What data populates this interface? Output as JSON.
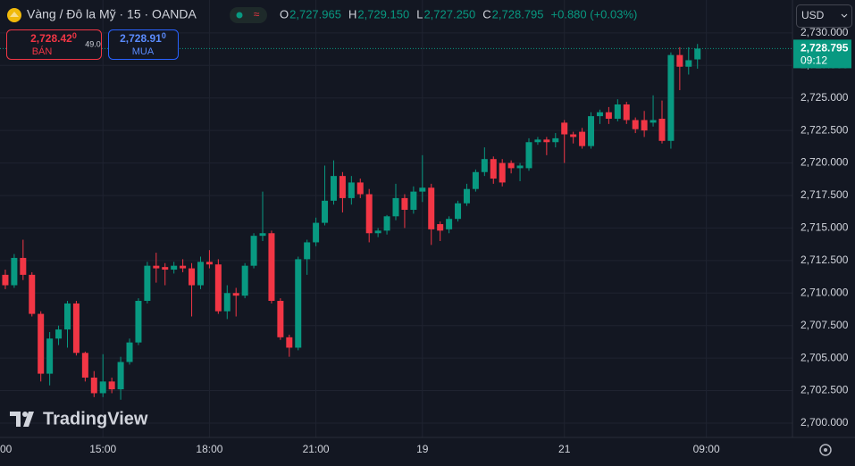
{
  "header": {
    "symbol": "Vàng / Đô la Mỹ · 15 · OANDA",
    "ohlc": [
      {
        "label": "O",
        "value": "2,727.965"
      },
      {
        "label": "H",
        "value": "2,729.150"
      },
      {
        "label": "L",
        "value": "2,727.250"
      },
      {
        "label": "C",
        "value": "2,728.795"
      }
    ],
    "change": "+0.880 (+0.03%)",
    "currency": "USD",
    "sell": {
      "price": "2,728.42",
      "pip": "0",
      "label": "BÁN"
    },
    "spread": "49.0",
    "buy": {
      "price": "2,728.91",
      "pip": "0",
      "label": "MUA"
    },
    "logo": "TradingView"
  },
  "chart_data": {
    "type": "candlestick",
    "up_color": "#089981",
    "down_color": "#f23645",
    "open": [
      2711.4,
      2710.6,
      2712.7,
      2711.4,
      2708.4,
      2703.8,
      2706.5,
      2707.2,
      2709.2,
      2705.4,
      2703.5,
      2702.3,
      2703.2,
      2702.6,
      2704.7,
      2706.2,
      2709.4,
      2712.1,
      2712.0,
      2711.8,
      2712.1,
      2711.9,
      2710.6,
      2712.4,
      2712.2,
      2708.6,
      2710.0,
      2709.8,
      2712.1,
      2714.4,
      2714.6,
      2709.4,
      2706.6,
      2705.8,
      2712.6,
      2713.9,
      2715.4,
      2717.1,
      2719.0,
      2717.3,
      2718.5,
      2717.6,
      2714.6,
      2714.8,
      2715.9,
      2717.3,
      2716.4,
      2717.8,
      2718.1,
      2715.3,
      2714.9,
      2715.7,
      2716.9,
      2718.0,
      2719.3,
      2720.3,
      2720.0,
      2720.0,
      2719.6,
      2719.6,
      2721.6,
      2721.8,
      2721.6,
      2723.1,
      2722.2,
      2722.4,
      2721.3,
      2723.6,
      2723.9,
      2723.4,
      2724.5,
      2723.3,
      2723.3,
      2723.1,
      2723.4,
      2721.7,
      2728.3,
      2727.4,
      2727.965
    ],
    "high": [
      2711.8,
      2713.0,
      2714.1,
      2711.6,
      2708.6,
      2707.0,
      2707.5,
      2709.4,
      2709.4,
      2705.5,
      2704.0,
      2705.3,
      2703.5,
      2705.1,
      2706.5,
      2709.6,
      2712.4,
      2713.1,
      2712.3,
      2712.4,
      2712.6,
      2712.3,
      2712.8,
      2713.3,
      2712.6,
      2710.6,
      2710.4,
      2712.3,
      2714.6,
      2717.8,
      2714.8,
      2709.6,
      2706.8,
      2712.8,
      2714.1,
      2715.8,
      2719.8,
      2720.2,
      2719.3,
      2719.0,
      2718.8,
      2718.0,
      2715.0,
      2716.0,
      2718.4,
      2717.6,
      2718.2,
      2720.6,
      2718.4,
      2715.5,
      2715.9,
      2717.1,
      2718.4,
      2719.5,
      2721.2,
      2720.5,
      2720.3,
      2720.2,
      2720.0,
      2721.9,
      2722.0,
      2722.0,
      2722.3,
      2723.3,
      2722.4,
      2722.7,
      2723.9,
      2724.1,
      2724.3,
      2724.9,
      2724.7,
      2723.5,
      2724.0,
      2725.2,
      2724.8,
      2728.5,
      2728.9,
      2728.9,
      2729.15
    ],
    "low": [
      2710.3,
      2710.4,
      2711.0,
      2708.2,
      2703.2,
      2702.9,
      2706.0,
      2705.8,
      2705.2,
      2703.2,
      2702.0,
      2702.0,
      2702.3,
      2701.8,
      2704.5,
      2706.0,
      2709.2,
      2710.8,
      2710.6,
      2711.5,
      2711.6,
      2708.2,
      2710.3,
      2711.9,
      2708.4,
      2708.0,
      2708.2,
      2709.6,
      2711.9,
      2714.0,
      2709.2,
      2706.4,
      2705.1,
      2705.6,
      2711.4,
      2713.6,
      2715.2,
      2716.8,
      2716.2,
      2716.8,
      2717.3,
      2713.9,
      2714.3,
      2714.5,
      2715.6,
      2715.0,
      2716.1,
      2717.0,
      2713.7,
      2714.0,
      2714.6,
      2715.5,
      2716.7,
      2717.8,
      2719.0,
      2718.4,
      2718.2,
      2719.2,
      2718.6,
      2719.4,
      2721.4,
      2720.6,
      2721.2,
      2720.0,
      2721.5,
      2721.1,
      2721.1,
      2723.0,
      2723.0,
      2723.2,
      2723.0,
      2722.3,
      2722.0,
      2722.8,
      2721.5,
      2721.1,
      2725.6,
      2726.8,
      2727.25
    ],
    "close": [
      2710.6,
      2712.7,
      2711.4,
      2708.4,
      2703.8,
      2706.5,
      2707.2,
      2709.2,
      2705.4,
      2703.5,
      2702.3,
      2703.2,
      2702.6,
      2704.7,
      2706.2,
      2709.4,
      2712.1,
      2711.9,
      2711.8,
      2712.1,
      2711.9,
      2710.6,
      2712.4,
      2712.2,
      2708.6,
      2710.0,
      2709.8,
      2712.1,
      2714.4,
      2714.6,
      2709.4,
      2706.6,
      2705.8,
      2712.6,
      2713.9,
      2715.4,
      2717.1,
      2719.0,
      2717.3,
      2718.5,
      2717.6,
      2714.6,
      2714.8,
      2715.9,
      2717.3,
      2716.4,
      2717.8,
      2718.1,
      2714.9,
      2714.8,
      2715.7,
      2716.9,
      2718.0,
      2719.3,
      2720.3,
      2718.8,
      2718.5,
      2719.6,
      2719.8,
      2721.6,
      2721.8,
      2721.6,
      2721.9,
      2722.2,
      2722.0,
      2721.3,
      2723.6,
      2723.9,
      2723.4,
      2724.5,
      2723.3,
      2722.6,
      2722.5,
      2723.3,
      2721.7,
      2728.3,
      2727.4,
      2727.9,
      2728.795
    ],
    "xlim": [
      -0.6,
      88.7
    ],
    "xticks": [
      {
        "value": -1,
        "label": "00"
      },
      {
        "value": 11,
        "label": "15:00"
      },
      {
        "value": 23,
        "label": "18:00"
      },
      {
        "value": 35,
        "label": "21:00"
      },
      {
        "value": 47,
        "label": "19"
      },
      {
        "value": 63,
        "label": "21"
      },
      {
        "value": 79,
        "label": "09:00"
      }
    ],
    "ylim": [
      2698.9,
      2732.53
    ],
    "yticks": [
      {
        "value": 2700,
        "label": "2,700.000"
      },
      {
        "value": 2702.5,
        "label": "2,702.500"
      },
      {
        "value": 2705,
        "label": "2,705.000"
      },
      {
        "value": 2707.5,
        "label": "2,707.500"
      },
      {
        "value": 2710,
        "label": "2,710.000"
      },
      {
        "value": 2712.5,
        "label": "2,712.500"
      },
      {
        "value": 2715,
        "label": "2,715.000"
      },
      {
        "value": 2717.5,
        "label": "2,717.500"
      },
      {
        "value": 2720,
        "label": "2,720.000"
      },
      {
        "value": 2722.5,
        "label": "2,722.500"
      },
      {
        "value": 2725,
        "label": "2,725.000"
      },
      {
        "value": 2727.5,
        "label": "2,727.500"
      },
      {
        "value": 2730,
        "label": "2,730.000"
      }
    ],
    "grid": true,
    "price_label": "2,728.795",
    "countdown": "09:12"
  }
}
